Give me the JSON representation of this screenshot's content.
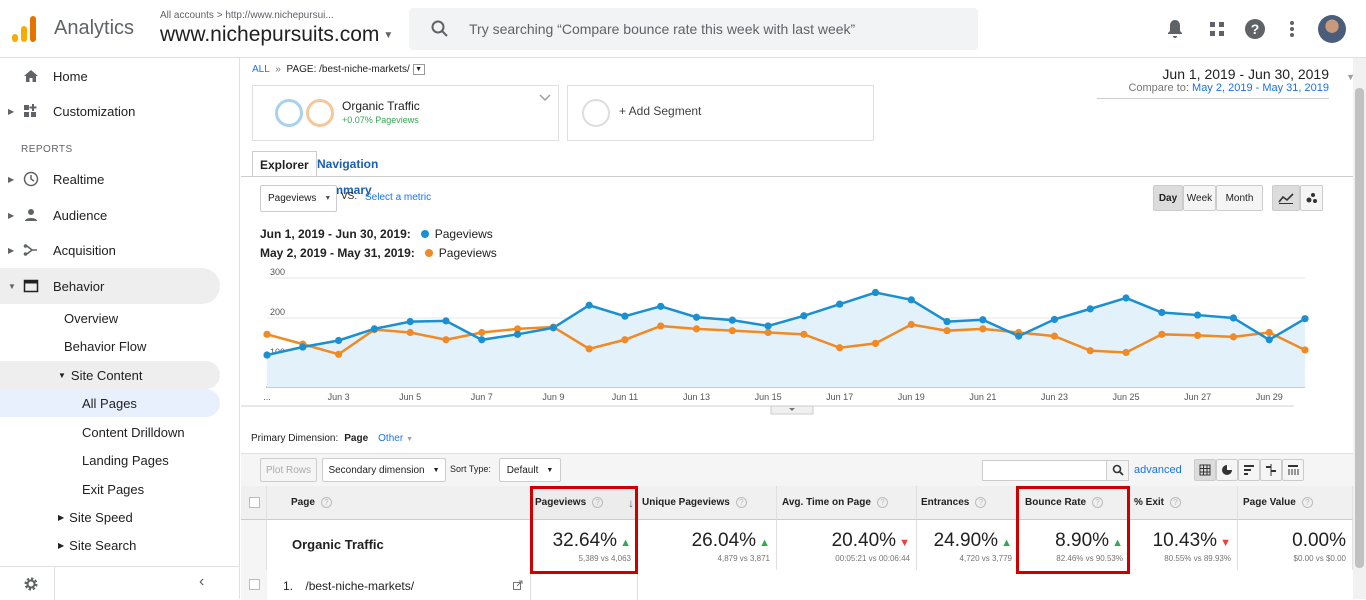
{
  "topbar": {
    "app_title": "Analytics",
    "account_path": "All accounts > http://www.nichepursui...",
    "site": "www.nichepursuits.com",
    "search_placeholder": "Try searching “Compare bounce rate this week with last week”",
    "icons": [
      "bell-icon",
      "apps-grid-icon",
      "help-icon",
      "more-vert-icon"
    ]
  },
  "sidebar": {
    "items": [
      {
        "label": "Home",
        "icon": "home-icon"
      },
      {
        "label": "Customization",
        "icon": "customization-icon"
      }
    ],
    "reports_label": "REPORTS",
    "reports": [
      {
        "label": "Realtime",
        "icon": "clock-icon"
      },
      {
        "label": "Audience",
        "icon": "person-icon"
      },
      {
        "label": "Acquisition",
        "icon": "acquisition-icon"
      },
      {
        "label": "Behavior",
        "icon": "behavior-icon"
      }
    ],
    "behavior_sub": [
      "Overview",
      "Behavior Flow"
    ],
    "site_content": "Site Content",
    "site_content_sub": [
      "All Pages",
      "Content Drilldown",
      "Landing Pages",
      "Exit Pages"
    ],
    "more_sub": [
      "Site Speed",
      "Site Search"
    ]
  },
  "main": {
    "breadcrumb_all": "ALL",
    "breadcrumb_sep": "»",
    "breadcrumb_page": "PAGE: /best-niche-markets/",
    "date_range": "Jun 1, 2019 - Jun 30, 2019",
    "compare_label": "Compare to:",
    "compare_range": "May 2, 2019 - May 31, 2019",
    "segment_name": "Organic Traffic",
    "segment_delta": "+0.07% Pageviews",
    "add_segment": "+ Add Segment",
    "tab_explorer": "Explorer",
    "tab_nav_summary": "Navigation Summary",
    "metric": "Pageviews",
    "vs": "VS.",
    "select_metric": "Select a metric",
    "period_buttons": [
      "Day",
      "Week",
      "Month"
    ],
    "legend": [
      {
        "range": "Jun 1, 2019 - Jun 30, 2019:",
        "metric": "Pageviews",
        "color": "#1a8fd1"
      },
      {
        "range": "May 2, 2019 - May 31, 2019:",
        "metric": "Pageviews",
        "color": "#f08a24"
      }
    ],
    "primary_dimension_label": "Primary Dimension:",
    "primary_dimension": "Page",
    "other": "Other",
    "plot_rows": "Plot Rows",
    "secondary_dimension": "Secondary dimension",
    "sort_type_label": "Sort Type:",
    "sort_type": "Default",
    "advanced": "advanced"
  },
  "chart_data": {
    "type": "line",
    "ylim": [
      0,
      300
    ],
    "yticks": [
      "300",
      "200",
      "100"
    ],
    "xtick_labels": [
      "...",
      "Jun 3",
      "Jun 5",
      "Jun 7",
      "Jun 9",
      "Jun 11",
      "Jun 13",
      "Jun 15",
      "Jun 17",
      "Jun 19",
      "Jun 21",
      "Jun 23",
      "Jun 25",
      "Jun 27",
      "Jun 29"
    ],
    "series": [
      {
        "values": [
          88,
          110,
          128,
          160,
          180,
          182,
          130,
          145,
          163,
          225,
          195,
          222,
          192,
          184,
          168,
          196,
          228,
          260,
          240,
          180,
          185,
          140,
          186,
          215,
          245,
          205,
          198,
          190,
          130,
          188
        ]
      },
      {
        "values": [
          145,
          118,
          90,
          158,
          150,
          130,
          150,
          160,
          165,
          105,
          130,
          168,
          160,
          155,
          150,
          145,
          108,
          120,
          172,
          155,
          160,
          150,
          140,
          100,
          95,
          145,
          142,
          138,
          150,
          102
        ]
      }
    ]
  },
  "table": {
    "headers": [
      "Page",
      "Pageviews",
      "Unique Pageviews",
      "Avg. Time on Page",
      "Entrances",
      "Bounce Rate",
      "% Exit",
      "Page Value"
    ],
    "totals_label": "Organic Traffic",
    "totals": [
      {
        "value": "32.64%",
        "sub": "5,389 vs 4,063",
        "dir": "up"
      },
      {
        "value": "26.04%",
        "sub": "4,879 vs 3,871",
        "dir": "up"
      },
      {
        "value": "20.40%",
        "sub": "00:05:21 vs 00:06:44",
        "dir": "down"
      },
      {
        "value": "24.90%",
        "sub": "4,720 vs 3,779",
        "dir": "up"
      },
      {
        "value": "8.90%",
        "sub": "82.46% vs 90.53%",
        "dir": "up"
      },
      {
        "value": "10.43%",
        "sub": "80.55% vs 89.93%",
        "dir": "down"
      },
      {
        "value": "0.00%",
        "sub": "$0.00 vs $0.00",
        "dir": ""
      }
    ],
    "row1_num": "1.",
    "row1_page": "/best-niche-markets/"
  }
}
